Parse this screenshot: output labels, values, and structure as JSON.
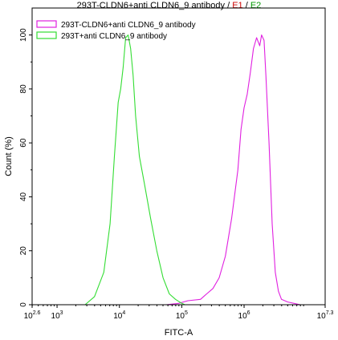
{
  "title": {
    "main": "293T-CLDN6+anti CLDN6_9 antibody",
    "sep1": " / ",
    "e1": "E1",
    "sep2": " / ",
    "e2": "E2"
  },
  "colors": {
    "series_1": "#e020e0",
    "series_2": "#33dd33",
    "e1_text": "#cc0000",
    "e2_text": "#009900"
  },
  "chart_data": {
    "type": "line",
    "title": "293T-CLDN6+anti CLDN6_9 antibody / E1 / E2",
    "xlabel": "FITC-A",
    "ylabel": "Count (%)",
    "x_scale": "log",
    "xlim_log10": [
      2.6,
      7.3
    ],
    "ylim": [
      0,
      110
    ],
    "y_ticks": [
      0,
      20,
      40,
      60,
      80,
      100
    ],
    "y_tick_labels": [
      "0",
      "20",
      "40",
      "60",
      "80",
      "100"
    ],
    "x_ticks_log10": [
      2.6,
      3,
      4,
      5,
      6,
      7.3
    ],
    "x_tick_labels": [
      {
        "base": "10",
        "exp": "2.6"
      },
      {
        "base": "10",
        "exp": "3"
      },
      {
        "base": "10",
        "exp": "4"
      },
      {
        "base": "10",
        "exp": "5"
      },
      {
        "base": "10",
        "exp": "6"
      },
      {
        "base": "10",
        "exp": "7.3"
      }
    ],
    "legend_position": "top-left",
    "series": [
      {
        "name": "293T-CLDN6+anti CLDN6_9 antibody",
        "x_log10": [
          4.75,
          4.95,
          5.1,
          5.3,
          5.4,
          5.5,
          5.6,
          5.7,
          5.8,
          5.9,
          5.95,
          6.0,
          6.05,
          6.1,
          6.15,
          6.2,
          6.25,
          6.28,
          6.32,
          6.35,
          6.4,
          6.45,
          6.5,
          6.55,
          6.6,
          6.7,
          6.8,
          6.9
        ],
        "y": [
          0,
          0.5,
          1.5,
          2,
          4,
          6,
          10,
          18,
          32,
          50,
          65,
          73,
          78,
          86,
          95,
          99,
          96,
          100,
          98,
          85,
          60,
          30,
          12,
          5,
          2,
          1,
          0.5,
          0
        ]
      },
      {
        "name": "293T+anti CLDN6_9 antibody",
        "x_log10": [
          3.45,
          3.6,
          3.75,
          3.85,
          3.92,
          3.98,
          4.02,
          4.06,
          4.1,
          4.14,
          4.18,
          4.22,
          4.26,
          4.32,
          4.4,
          4.5,
          4.6,
          4.7,
          4.8,
          4.9,
          5.0,
          5.05
        ],
        "y": [
          0,
          3,
          12,
          30,
          55,
          75,
          80,
          88,
          99,
          100,
          95,
          85,
          70,
          55,
          45,
          32,
          20,
          10,
          4,
          2,
          0.5,
          0
        ]
      }
    ]
  }
}
